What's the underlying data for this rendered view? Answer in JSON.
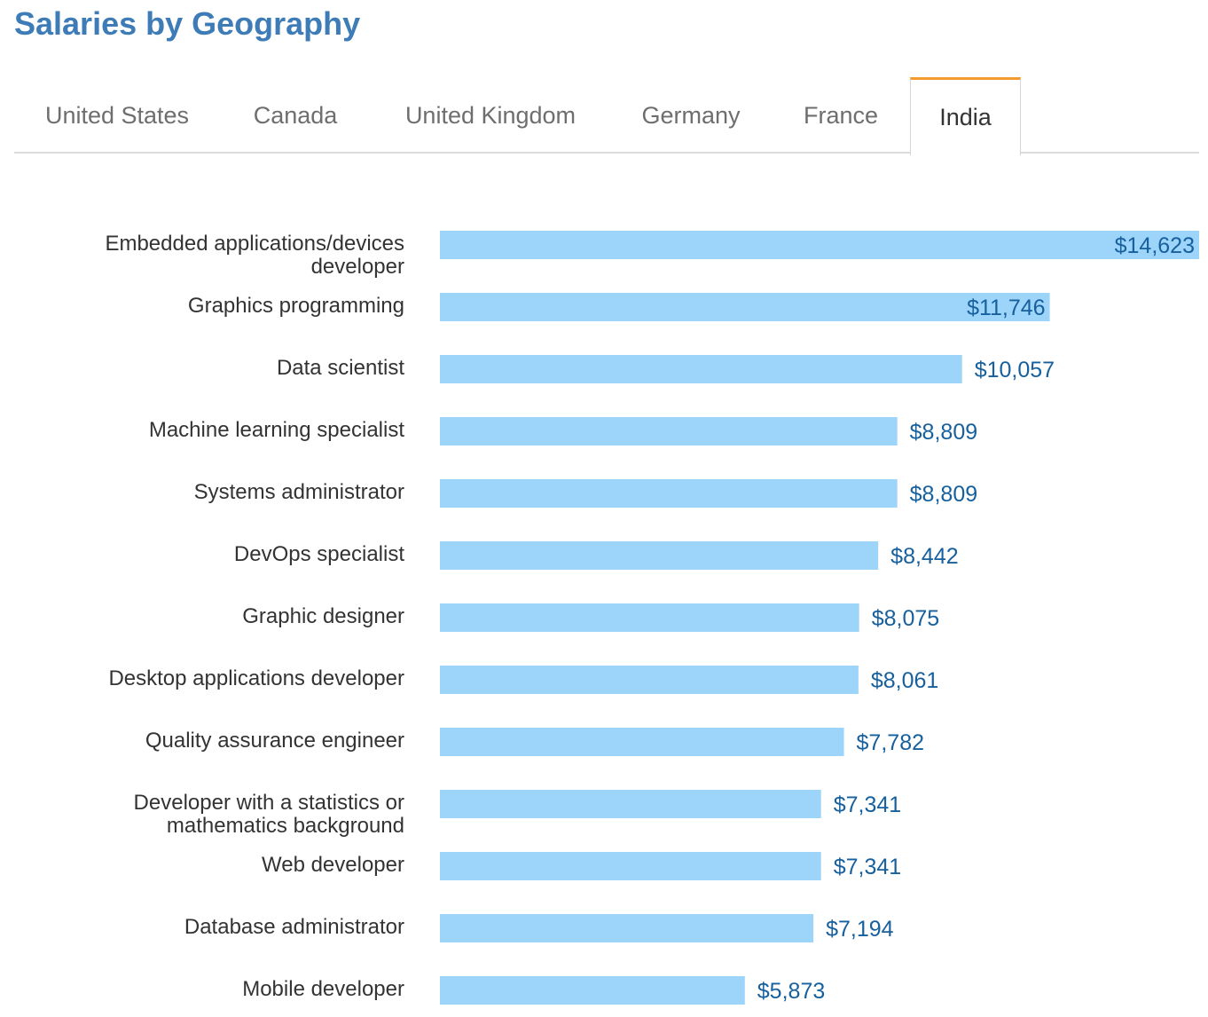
{
  "title": "Salaries by Geography",
  "tabs": [
    {
      "label": "United States",
      "active": false
    },
    {
      "label": "Canada",
      "active": false
    },
    {
      "label": "United Kingdom",
      "active": false
    },
    {
      "label": "Germany",
      "active": false
    },
    {
      "label": "France",
      "active": false
    },
    {
      "label": "India",
      "active": true
    }
  ],
  "colors": {
    "title": "#3d7cb6",
    "bar": "#9dd4fa",
    "value_label": "#17609e",
    "active_tab_accent": "#f49b2d"
  },
  "chart_data": {
    "type": "bar",
    "orientation": "horizontal",
    "categories": [
      "Embedded applications/devices developer",
      "Graphics programming",
      "Data scientist",
      "Machine learning specialist",
      "Systems administrator",
      "DevOps specialist",
      "Graphic designer",
      "Desktop applications developer",
      "Quality assurance engineer",
      "Developer with a statistics or mathematics background",
      "Web developer",
      "Database administrator",
      "Mobile developer"
    ],
    "category_lines": [
      [
        "Embedded applications/devices",
        "developer"
      ],
      [
        "Graphics programming"
      ],
      [
        "Data scientist"
      ],
      [
        "Machine learning specialist"
      ],
      [
        "Systems administrator"
      ],
      [
        "DevOps specialist"
      ],
      [
        "Graphic designer"
      ],
      [
        "Desktop applications developer"
      ],
      [
        "Quality assurance engineer"
      ],
      [
        "Developer with a statistics or",
        "mathematics background"
      ],
      [
        "Web developer"
      ],
      [
        "Database administrator"
      ],
      [
        "Mobile developer"
      ]
    ],
    "values": [
      14623,
      11746,
      10057,
      8809,
      8809,
      8442,
      8075,
      8061,
      7782,
      7341,
      7341,
      7194,
      5873
    ],
    "value_labels": [
      "$14,623",
      "$11,746",
      "$10,057",
      "$8,809",
      "$8,809",
      "$8,442",
      "$8,075",
      "$8,061",
      "$7,782",
      "$7,341",
      "$7,341",
      "$7,194",
      "$5,873"
    ],
    "xlim": [
      0,
      14623
    ],
    "grid": false,
    "legend": "none"
  }
}
